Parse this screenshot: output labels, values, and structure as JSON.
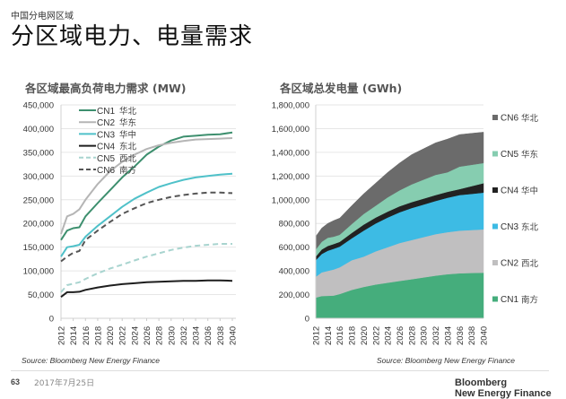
{
  "header": {
    "subtitle": "中国分电网区域",
    "title": "分区域电力、电量需求"
  },
  "footer": {
    "page_number": "63",
    "date": "2017年7月25日",
    "brand_line1": "Bloomberg",
    "brand_line2": "New Energy Finance"
  },
  "chart_data": [
    {
      "type": "line",
      "title": "各区域最高负荷电力需求 (MW)",
      "xlabel": "",
      "ylabel": "",
      "ylim": [
        0,
        450000
      ],
      "yticks": [
        0,
        50000,
        100000,
        150000,
        200000,
        250000,
        300000,
        350000,
        400000,
        450000
      ],
      "ytick_labels": [
        "0",
        "50,000",
        "100,000",
        "150,000",
        "200,000",
        "250,000",
        "300,000",
        "350,000",
        "400,000",
        "450,000"
      ],
      "xtick_labels": [
        "2012",
        "2014",
        "2016",
        "2018",
        "2020",
        "2022",
        "2024",
        "2026",
        "2028",
        "2030",
        "2032",
        "2034",
        "2036",
        "2038",
        "2040"
      ],
      "x": [
        2012,
        2013,
        2014,
        2015,
        2016,
        2018,
        2020,
        2022,
        2024,
        2026,
        2028,
        2030,
        2032,
        2034,
        2036,
        2038,
        2040
      ],
      "grid": true,
      "legend_position": "top-left",
      "source": "Source: Bloomberg New Energy Finance",
      "series": [
        {
          "name": "CN1",
          "region": "华北",
          "color": "#3d8f6e",
          "dash": false,
          "values": [
            165000,
            185000,
            190000,
            192000,
            215000,
            243000,
            270000,
            297000,
            320000,
            345000,
            362000,
            375000,
            383000,
            385000,
            387000,
            388000,
            392000
          ]
        },
        {
          "name": "CN2",
          "region": "华东",
          "color": "#b5b5b5",
          "dash": false,
          "values": [
            178000,
            215000,
            220000,
            230000,
            250000,
            283000,
            310000,
            330000,
            345000,
            357000,
            365000,
            370000,
            374000,
            377000,
            378000,
            379000,
            380000
          ]
        },
        {
          "name": "CN3",
          "region": "华中",
          "color": "#4fc1c9",
          "dash": false,
          "values": [
            130000,
            150000,
            152000,
            155000,
            172000,
            195000,
            215000,
            235000,
            252000,
            265000,
            277000,
            285000,
            292000,
            297000,
            300000,
            303000,
            305000
          ]
        },
        {
          "name": "CN4",
          "region": "东北",
          "color": "#1e1e1e",
          "dash": false,
          "values": [
            45000,
            55000,
            55000,
            56000,
            60000,
            65000,
            69000,
            72000,
            74000,
            76000,
            77000,
            78000,
            79000,
            79000,
            80000,
            80000,
            79000
          ]
        },
        {
          "name": "CN5",
          "region": "西北",
          "color": "#a8d4cf",
          "dash": true,
          "values": [
            55000,
            70000,
            73000,
            76000,
            83000,
            95000,
            105000,
            113000,
            122000,
            130000,
            137000,
            144000,
            149000,
            153000,
            155000,
            157000,
            157000
          ]
        },
        {
          "name": "CN6",
          "region": "南方",
          "color": "#555555",
          "dash": true,
          "values": [
            120000,
            130000,
            138000,
            142000,
            165000,
            185000,
            203000,
            220000,
            232000,
            243000,
            250000,
            256000,
            260000,
            263000,
            265000,
            265000,
            264000
          ]
        }
      ]
    },
    {
      "type": "area",
      "stacked": true,
      "title": "各区域总发电量 (GWh)",
      "xlabel": "",
      "ylabel": "",
      "ylim": [
        0,
        1800000
      ],
      "yticks": [
        0,
        200000,
        400000,
        600000,
        800000,
        1000000,
        1200000,
        1400000,
        1600000,
        1800000
      ],
      "ytick_labels": [
        "0",
        "200,000",
        "400,000",
        "600,000",
        "800,000",
        "1,000,000",
        "1,200,000",
        "1,400,000",
        "1,600,000",
        "1,800,000"
      ],
      "xtick_labels": [
        "2012",
        "2014",
        "2016",
        "2018",
        "2020",
        "2022",
        "2024",
        "2026",
        "2028",
        "2030",
        "2032",
        "2034",
        "2036",
        "2038",
        "2040"
      ],
      "x": [
        2012,
        2013,
        2014,
        2015,
        2016,
        2018,
        2020,
        2022,
        2024,
        2026,
        2028,
        2030,
        2032,
        2034,
        2036,
        2038,
        2040
      ],
      "grid": true,
      "legend_position": "right",
      "source": "Source: Bloomberg New Energy Finance",
      "series": [
        {
          "name": "CN1",
          "region": "南方",
          "color": "#45ad7c",
          "values": [
            175000,
            188000,
            190000,
            192000,
            205000,
            240000,
            265000,
            285000,
            300000,
            315000,
            330000,
            345000,
            360000,
            372000,
            380000,
            383000,
            385000
          ]
        },
        {
          "name": "CN2",
          "region": "西北",
          "color": "#c0bfc0",
          "values": [
            175000,
            200000,
            210000,
            220000,
            225000,
            250000,
            255000,
            280000,
            300000,
            320000,
            330000,
            340000,
            350000,
            355000,
            360000,
            362000,
            365000
          ]
        },
        {
          "name": "CN3",
          "region": "东北",
          "color": "#3dbbe4",
          "values": [
            140000,
            155000,
            170000,
            175000,
            175000,
            185000,
            220000,
            235000,
            250000,
            260000,
            270000,
            275000,
            280000,
            290000,
            300000,
            305000,
            310000
          ]
        },
        {
          "name": "CN4",
          "region": "华中",
          "color": "#222222",
          "values": [
            30000,
            38000,
            40000,
            40000,
            40000,
            45000,
            50000,
            50000,
            50000,
            50000,
            50000,
            50000,
            50000,
            50000,
            50000,
            65000,
            80000
          ]
        },
        {
          "name": "CN5",
          "region": "华东",
          "color": "#86cdb0",
          "values": [
            60000,
            65000,
            70000,
            62000,
            60000,
            75000,
            90000,
            100000,
            120000,
            135000,
            150000,
            160000,
            170000,
            165000,
            190000,
            180000,
            170000
          ]
        },
        {
          "name": "CN6",
          "region": "华北",
          "color": "#6b6b6b",
          "values": [
            110000,
            115000,
            120000,
            135000,
            140000,
            155000,
            170000,
            190000,
            210000,
            230000,
            250000,
            260000,
            270000,
            280000,
            270000,
            265000,
            260000
          ]
        }
      ]
    }
  ]
}
